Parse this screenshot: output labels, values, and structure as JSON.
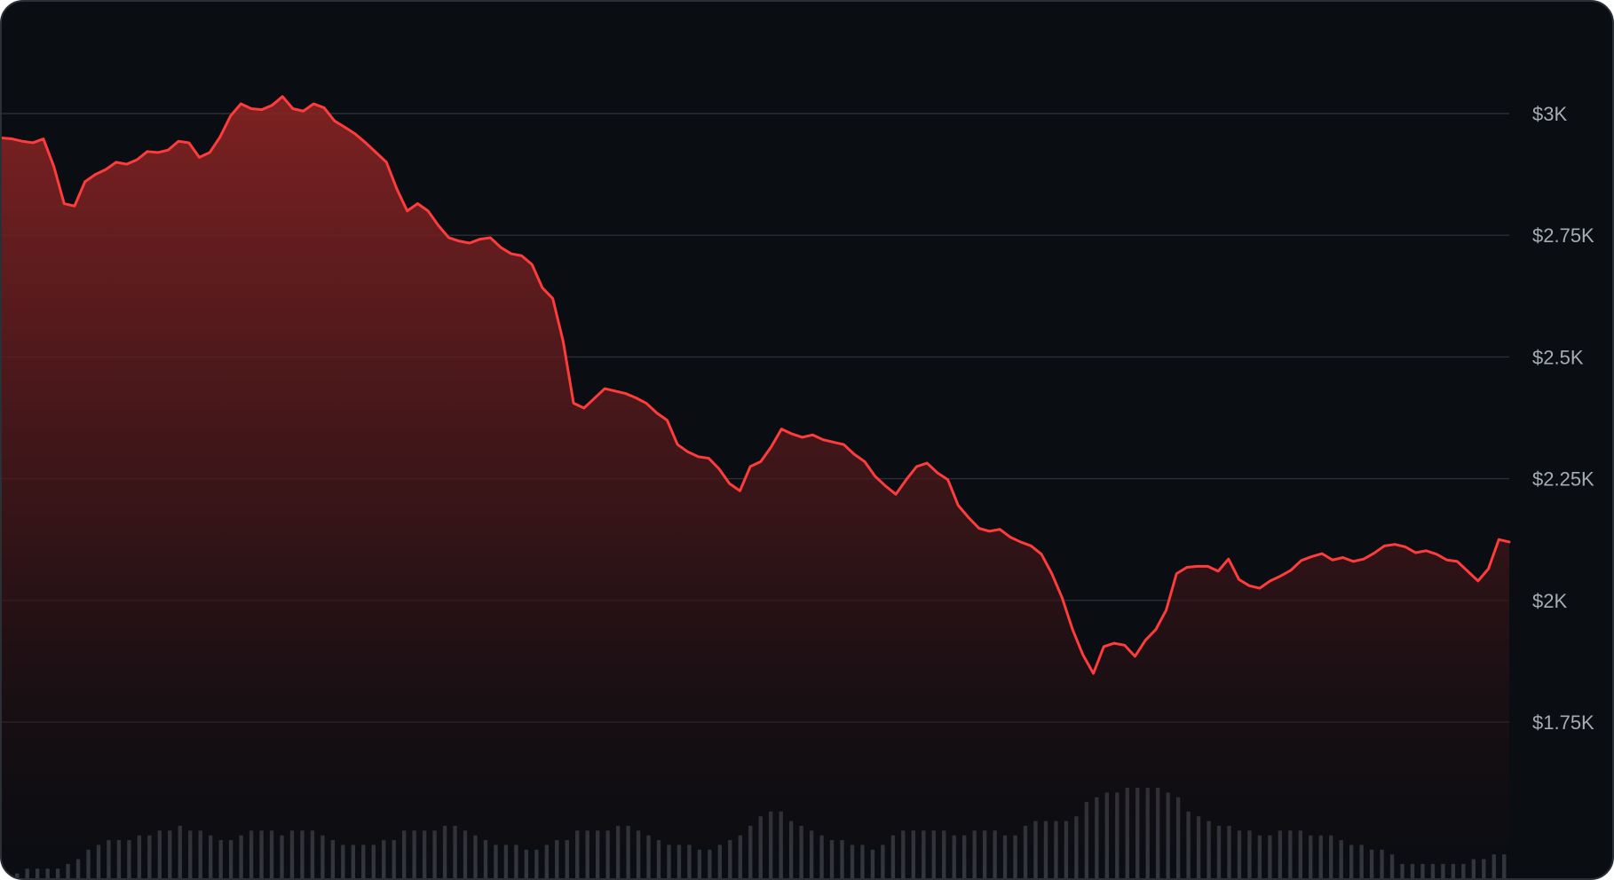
{
  "chart_data": {
    "type": "area",
    "title": "",
    "xlabel": "",
    "ylabel": "",
    "ylim": [
      1600,
      3200
    ],
    "y_ticks": [
      {
        "value": 3000,
        "label": "$3K"
      },
      {
        "value": 2750,
        "label": "$2.75K"
      },
      {
        "value": 2500,
        "label": "$2.5K"
      },
      {
        "value": 2250,
        "label": "$2.25K"
      },
      {
        "value": 2000,
        "label": "$2K"
      },
      {
        "value": 1750,
        "label": "$1.75K"
      }
    ],
    "grid": true,
    "colors": {
      "line": "#ff3b3b",
      "area_top": "#8d2424",
      "area_bottom": "#120c0f",
      "volume_bar": "#3c414a",
      "background": "#0a0d12"
    },
    "price": [
      2950,
      2948,
      2943,
      2940,
      2948,
      2892,
      2815,
      2810,
      2860,
      2875,
      2885,
      2900,
      2896,
      2905,
      2922,
      2920,
      2925,
      2943,
      2940,
      2910,
      2920,
      2952,
      2995,
      3020,
      3010,
      3008,
      3017,
      3035,
      3010,
      3005,
      3020,
      3012,
      2985,
      2972,
      2958,
      2940,
      2920,
      2900,
      2845,
      2800,
      2815,
      2800,
      2770,
      2745,
      2738,
      2734,
      2742,
      2745,
      2725,
      2712,
      2708,
      2690,
      2642,
      2620,
      2532,
      2405,
      2395,
      2415,
      2435,
      2430,
      2425,
      2416,
      2405,
      2385,
      2370,
      2320,
      2305,
      2295,
      2292,
      2270,
      2240,
      2225,
      2275,
      2285,
      2315,
      2352,
      2342,
      2335,
      2340,
      2330,
      2325,
      2320,
      2300,
      2285,
      2255,
      2235,
      2218,
      2248,
      2275,
      2282,
      2262,
      2248,
      2195,
      2170,
      2148,
      2142,
      2146,
      2130,
      2120,
      2112,
      2095,
      2055,
      2005,
      1940,
      1888,
      1850,
      1905,
      1912,
      1908,
      1885,
      1918,
      1940,
      1980,
      2055,
      2068,
      2070,
      2070,
      2060,
      2085,
      2043,
      2030,
      2025,
      2040,
      2050,
      2062,
      2082,
      2090,
      2096,
      2083,
      2088,
      2080,
      2085,
      2097,
      2112,
      2115,
      2110,
      2098,
      2102,
      2095,
      2083,
      2080,
      2060,
      2040,
      2065,
      2125,
      2120
    ],
    "volume": [
      1,
      1,
      2,
      2,
      2,
      2,
      3,
      4,
      6,
      7,
      8,
      8,
      8,
      9,
      9,
      10,
      10,
      11,
      10,
      10,
      9,
      8,
      8,
      9,
      10,
      10,
      10,
      9,
      10,
      10,
      10,
      9,
      8,
      7,
      7,
      7,
      7,
      8,
      8,
      10,
      10,
      10,
      10,
      11,
      11,
      10,
      9,
      8,
      7,
      7,
      7,
      6,
      6,
      7,
      8,
      8,
      10,
      10,
      10,
      10,
      11,
      11,
      10,
      9,
      8,
      7,
      7,
      7,
      6,
      6,
      7,
      8,
      9,
      11,
      13,
      14,
      14,
      12,
      11,
      10,
      9,
      8,
      8,
      7,
      7,
      6,
      7,
      9,
      10,
      10,
      10,
      10,
      10,
      9,
      9,
      10,
      10,
      10,
      9,
      9,
      11,
      12,
      12,
      12,
      12,
      13,
      16,
      17,
      18,
      18,
      19,
      19,
      19,
      19,
      18,
      17,
      14,
      13,
      12,
      11,
      11,
      10,
      10,
      9,
      9,
      10,
      10,
      10,
      9,
      9,
      9,
      8,
      7,
      7,
      6,
      6,
      5,
      3,
      3,
      3,
      3,
      3,
      3,
      3,
      4,
      4,
      5,
      5
    ]
  }
}
